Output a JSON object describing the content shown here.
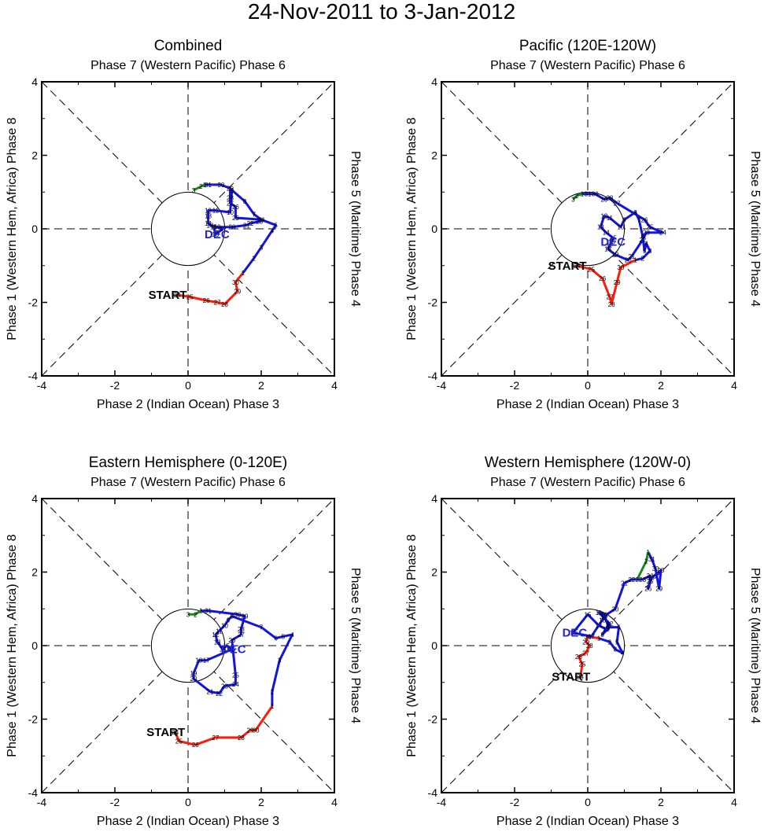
{
  "title": "24-Nov-2011 to 3-Jan-2012",
  "colors": {
    "nov": "#ff1b0a",
    "dec": "#1414e0",
    "jan": "#1a8a1a",
    "axis": "#000000"
  },
  "chart_data": [
    {
      "type": "line",
      "title": "Combined",
      "xlabel": "Phase 2 (Indian Ocean) Phase 3",
      "ylabel": "Phase 1 (Western Hem, Africa) Phase 8",
      "top_label": "Phase 7 (Western Pacific) Phase 6",
      "right_label": "Phase 5 (Maritime) Phase 4",
      "xlim": [
        -4,
        4
      ],
      "ylim": [
        -4,
        4
      ],
      "ticks": [
        "-4",
        "-2",
        "0",
        "2",
        "4"
      ],
      "start_label": "START",
      "month_label": "DEC",
      "series": [
        {
          "name": "Nov",
          "color": "nov",
          "labels": [
            "24",
            "25",
            "26",
            "27",
            "28",
            "29",
            "30"
          ],
          "points": [
            [
              -0.3,
              -1.8
            ],
            [
              0.05,
              -1.85
            ],
            [
              0.5,
              -1.95
            ],
            [
              0.8,
              -2.0
            ],
            [
              1.0,
              -2.05
            ],
            [
              1.35,
              -1.7
            ],
            [
              1.3,
              -1.45
            ]
          ]
        },
        {
          "name": "Dec",
          "color": "dec",
          "labels": [
            "1",
            "2",
            "3",
            "4",
            "5",
            "6",
            "7",
            "8",
            "9",
            "10",
            "11",
            "12",
            "13",
            "14",
            "15",
            "16",
            "17",
            "18",
            "19",
            "20",
            "21",
            "22",
            "23",
            "24",
            "25",
            "26",
            "27",
            "28",
            "29",
            "30",
            "31"
          ],
          "points": [
            [
              1.5,
              -1.2
            ],
            [
              1.8,
              -0.8
            ],
            [
              2.0,
              -0.5
            ],
            [
              2.3,
              -0.05
            ],
            [
              2.4,
              0.1
            ],
            [
              2.0,
              0.25
            ],
            [
              1.8,
              0.4
            ],
            [
              1.55,
              0.75
            ],
            [
              1.2,
              1.05
            ],
            [
              1.15,
              0.45
            ],
            [
              0.75,
              0.5
            ],
            [
              0.55,
              0.5
            ],
            [
              0.55,
              0.35
            ],
            [
              0.55,
              0.15
            ],
            [
              0.7,
              0.05
            ],
            [
              0.75,
              -0.15
            ],
            [
              0.95,
              0.0
            ],
            [
              0.6,
              0.1
            ],
            [
              0.8,
              0.05
            ],
            [
              1.2,
              0.05
            ],
            [
              1.6,
              0.1
            ],
            [
              1.7,
              0.15
            ],
            [
              1.95,
              0.2
            ],
            [
              2.0,
              0.25
            ],
            [
              1.3,
              0.3
            ],
            [
              1.3,
              0.6
            ],
            [
              1.15,
              0.7
            ],
            [
              1.15,
              0.85
            ],
            [
              1.15,
              1.1
            ],
            [
              0.9,
              1.2
            ],
            [
              0.55,
              1.2
            ]
          ]
        },
        {
          "name": "Jan",
          "color": "jan",
          "labels": [
            "1",
            "2",
            "3"
          ],
          "points": [
            [
              0.45,
              1.2
            ],
            [
              0.35,
              1.15
            ],
            [
              0.15,
              1.05
            ]
          ]
        }
      ]
    },
    {
      "type": "line",
      "title": "Pacific (120E-120W)",
      "xlabel": "Phase 2 (Indian Ocean) Phase 3",
      "ylabel": "Phase 1 (Western Hem, Africa) Phase 8",
      "top_label": "Phase 7 (Western Pacific) Phase 6",
      "right_label": "Phase 5 (Maritime) Phase 4",
      "xlim": [
        -4,
        4
      ],
      "ylim": [
        -4,
        4
      ],
      "ticks": [
        "-4",
        "-2",
        "0",
        "2",
        "4"
      ],
      "start_label": "START",
      "month_label": "DEC",
      "series": [
        {
          "name": "Nov",
          "color": "nov",
          "labels": [
            "24",
            "25",
            "26",
            "27",
            "28",
            "29",
            "30"
          ],
          "points": [
            [
              -0.3,
              -1.0
            ],
            [
              0.1,
              -1.1
            ],
            [
              0.4,
              -1.35
            ],
            [
              0.6,
              -1.85
            ],
            [
              0.65,
              -2.05
            ],
            [
              0.8,
              -1.45
            ],
            [
              0.9,
              -1.05
            ]
          ]
        },
        {
          "name": "Dec",
          "color": "dec",
          "labels": [
            "1",
            "2",
            "3",
            "4",
            "5",
            "6",
            "7",
            "8",
            "9",
            "10",
            "11",
            "12",
            "13",
            "14",
            "15",
            "16",
            "17",
            "18",
            "19",
            "20",
            "21",
            "22",
            "23",
            "24",
            "25",
            "26",
            "27",
            "28",
            "29",
            "30",
            "31"
          ],
          "points": [
            [
              1.3,
              -0.85
            ],
            [
              1.5,
              -0.8
            ],
            [
              1.7,
              -0.6
            ],
            [
              1.6,
              -0.4
            ],
            [
              1.55,
              -0.6
            ],
            [
              1.5,
              -0.2
            ],
            [
              1.4,
              0.25
            ],
            [
              1.3,
              0.45
            ],
            [
              1.0,
              0.25
            ],
            [
              0.9,
              0.05
            ],
            [
              0.6,
              0.3
            ],
            [
              0.45,
              0.35
            ],
            [
              0.35,
              0.05
            ],
            [
              0.5,
              -0.1
            ],
            [
              0.7,
              -0.25
            ],
            [
              0.65,
              -0.35
            ],
            [
              0.6,
              -0.45
            ],
            [
              0.55,
              -0.55
            ],
            [
              0.75,
              -0.7
            ],
            [
              1.1,
              -0.85
            ],
            [
              1.2,
              -0.75
            ],
            [
              1.5,
              -0.3
            ],
            [
              1.6,
              -0.1
            ],
            [
              2.05,
              -0.1
            ],
            [
              1.7,
              0.05
            ],
            [
              1.55,
              0.25
            ],
            [
              0.8,
              0.7
            ],
            [
              0.6,
              0.85
            ],
            [
              0.45,
              0.8
            ],
            [
              0.2,
              0.95
            ],
            [
              0.0,
              0.95
            ]
          ]
        },
        {
          "name": "Jan",
          "color": "jan",
          "labels": [
            "1",
            "2",
            "3"
          ],
          "points": [
            [
              -0.15,
              0.95
            ],
            [
              -0.3,
              0.9
            ],
            [
              -0.4,
              0.8
            ]
          ]
        }
      ]
    },
    {
      "type": "line",
      "title": "Eastern Hemisphere (0-120E)",
      "xlabel": "Phase 2 (Indian Ocean) Phase 3",
      "ylabel": "Phase 1 (Western Hem, Africa) Phase 8",
      "top_label": "Phase 7 (Western Pacific) Phase 6",
      "right_label": "Phase 5 (Maritime) Phase 4",
      "xlim": [
        -4,
        4
      ],
      "ylim": [
        -4,
        4
      ],
      "ticks": [
        "-4",
        "-2",
        "0",
        "2",
        "4"
      ],
      "start_label": "START",
      "month_label": "DEC",
      "series": [
        {
          "name": "Nov",
          "color": "nov",
          "labels": [
            "24",
            "25",
            "26",
            "27",
            "28",
            "29",
            "30"
          ],
          "points": [
            [
              -0.35,
              -2.35
            ],
            [
              -0.25,
              -2.6
            ],
            [
              0.2,
              -2.7
            ],
            [
              0.75,
              -2.5
            ],
            [
              1.45,
              -2.5
            ],
            [
              1.7,
              -2.3
            ],
            [
              1.85,
              -2.3
            ]
          ]
        },
        {
          "name": "Dec",
          "color": "dec",
          "labels": [
            "1",
            "2",
            "3",
            "4",
            "5",
            "6",
            "7",
            "8",
            "9",
            "10",
            "11",
            "12",
            "13",
            "14",
            "15",
            "16",
            "17",
            "18",
            "19",
            "20",
            "21",
            "22",
            "23",
            "24",
            "25",
            "26",
            "27",
            "28",
            "29",
            "30",
            "31"
          ],
          "points": [
            [
              2.3,
              -1.65
            ],
            [
              2.3,
              -1.25
            ],
            [
              2.5,
              -0.4
            ],
            [
              2.85,
              0.3
            ],
            [
              2.6,
              0.25
            ],
            [
              2.4,
              0.2
            ],
            [
              2.0,
              0.5
            ],
            [
              1.2,
              0.8
            ],
            [
              1.1,
              0.7
            ],
            [
              1.0,
              0.55
            ],
            [
              0.85,
              0.4
            ],
            [
              0.75,
              0.3
            ],
            [
              0.8,
              0.1
            ],
            [
              0.95,
              -0.1
            ],
            [
              1.05,
              0.0
            ],
            [
              1.2,
              -0.1
            ],
            [
              0.5,
              -0.4
            ],
            [
              0.3,
              -0.4
            ],
            [
              0.15,
              -0.75
            ],
            [
              0.15,
              -0.9
            ],
            [
              0.6,
              -1.25
            ],
            [
              0.85,
              -1.3
            ],
            [
              1.0,
              -1.1
            ],
            [
              1.3,
              -1.05
            ],
            [
              1.3,
              -0.8
            ],
            [
              1.2,
              0.15
            ],
            [
              1.45,
              0.3
            ],
            [
              1.45,
              0.45
            ],
            [
              1.55,
              0.8
            ],
            [
              1.35,
              0.85
            ],
            [
              0.55,
              0.95
            ]
          ]
        },
        {
          "name": "Jan",
          "color": "jan",
          "labels": [
            "1",
            "2",
            "3"
          ],
          "points": [
            [
              0.35,
              0.95
            ],
            [
              0.2,
              0.85
            ],
            [
              0.0,
              0.85
            ]
          ]
        }
      ]
    },
    {
      "type": "line",
      "title": "Western Hemisphere (120W-0)",
      "xlabel": "Phase 2 (Indian Ocean) Phase 3",
      "ylabel": "Phase 1 (Western Hem, Africa) Phase 8",
      "top_label": "Phase 7 (Western Pacific) Phase 6",
      "right_label": "Phase 5 (Maritime) Phase 4",
      "xlim": [
        -4,
        4
      ],
      "ylim": [
        -4,
        4
      ],
      "ticks": [
        "-4",
        "-2",
        "0",
        "2",
        "4"
      ],
      "start_label": "START",
      "month_label": "DEC",
      "series": [
        {
          "name": "Nov",
          "color": "nov",
          "labels": [
            "24",
            "25",
            "26",
            "27",
            "28",
            "29",
            "30"
          ],
          "points": [
            [
              -0.2,
              -0.85
            ],
            [
              -0.15,
              -0.5
            ],
            [
              -0.25,
              -0.3
            ],
            [
              -0.05,
              -0.2
            ],
            [
              0.05,
              0.0
            ],
            [
              -0.05,
              0.1
            ],
            [
              0.0,
              0.25
            ]
          ]
        },
        {
          "name": "Dec",
          "color": "dec",
          "labels": [
            "1",
            "2",
            "3",
            "4",
            "5",
            "6",
            "7",
            "8",
            "9",
            "10",
            "11",
            "12",
            "13",
            "14",
            "15",
            "16",
            "17",
            "18",
            "19",
            "20",
            "21",
            "22",
            "23",
            "24",
            "25",
            "26",
            "27",
            "28",
            "29",
            "30",
            "31"
          ],
          "points": [
            [
              0.3,
              0.2
            ],
            [
              0.6,
              0.1
            ],
            [
              0.75,
              -0.1
            ],
            [
              0.95,
              -0.2
            ],
            [
              0.8,
              0.1
            ],
            [
              0.85,
              0.5
            ],
            [
              0.6,
              0.5
            ],
            [
              0.4,
              0.3
            ],
            [
              0.55,
              0.55
            ],
            [
              0.45,
              0.85
            ],
            [
              0.3,
              0.9
            ],
            [
              0.6,
              0.6
            ],
            [
              0.5,
              0.45
            ],
            [
              0.3,
              0.55
            ],
            [
              0.0,
              0.85
            ],
            [
              -0.4,
              0.35
            ],
            [
              0.1,
              0.25
            ],
            [
              0.4,
              0.7
            ],
            [
              0.45,
              0.8
            ],
            [
              0.75,
              1.0
            ],
            [
              1.0,
              1.7
            ],
            [
              1.2,
              1.8
            ],
            [
              1.5,
              1.8
            ],
            [
              1.7,
              1.9
            ],
            [
              1.7,
              1.75
            ],
            [
              1.65,
              1.55
            ],
            [
              1.75,
              1.85
            ],
            [
              2.0,
              2.05
            ],
            [
              1.95,
              1.55
            ],
            [
              1.85,
              2.1
            ],
            [
              1.75,
              2.35
            ]
          ]
        },
        {
          "name": "Jan",
          "color": "jan",
          "labels": [
            "1",
            "2",
            "3"
          ],
          "points": [
            [
              1.65,
              2.55
            ],
            [
              1.6,
              2.3
            ],
            [
              1.35,
              1.8
            ]
          ]
        }
      ]
    }
  ]
}
